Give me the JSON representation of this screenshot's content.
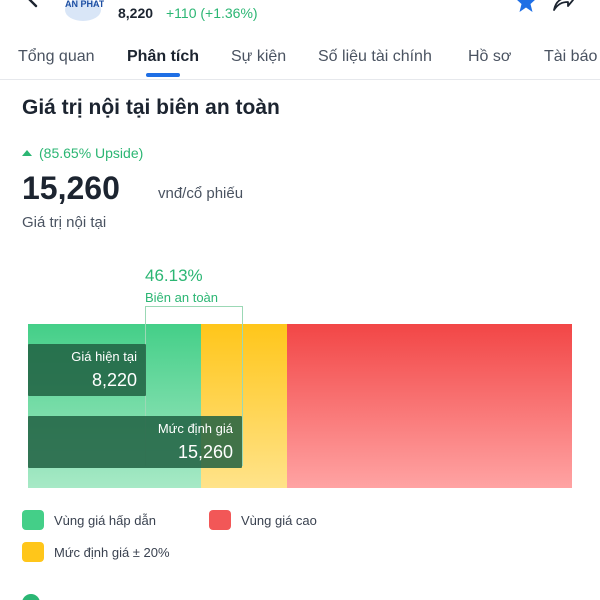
{
  "header": {
    "price": "8,220",
    "change": "+110 (+1.36%)",
    "logo_text": "AN PHAT"
  },
  "tabs": [
    {
      "label": "Tổng quan"
    },
    {
      "label": "Phân tích"
    },
    {
      "label": "Sự kiện"
    },
    {
      "label": "Số liệu tài chính"
    },
    {
      "label": "Hồ sơ"
    },
    {
      "label": "Tài báo"
    }
  ],
  "section": {
    "title": "Giá trị nội tại biên an toàn",
    "upside": "(85.65% Upside)",
    "intrinsic_value": "15,260",
    "unit": "vnđ/cổ phiếu",
    "intrinsic_label": "Giá trị nội tại"
  },
  "chart": {
    "margin_pct": "46.13%",
    "margin_label": "Biên an toàn",
    "current_label": "Giá hiện tại",
    "current_value": "8,220",
    "valuation_label": "Mức định giá",
    "valuation_value": "15,260"
  },
  "legend": {
    "attractive": "Vùng giá hấp dẫn",
    "high": "Vùng giá cao",
    "valuation_range": "Mức định giá ± 20%"
  },
  "colors": {
    "accent_green": "#2bb673",
    "tab_active": "#1f6fe5",
    "zone_green": "#44cf88",
    "zone_yellow": "#ffc61a",
    "zone_red": "#f24646"
  }
}
